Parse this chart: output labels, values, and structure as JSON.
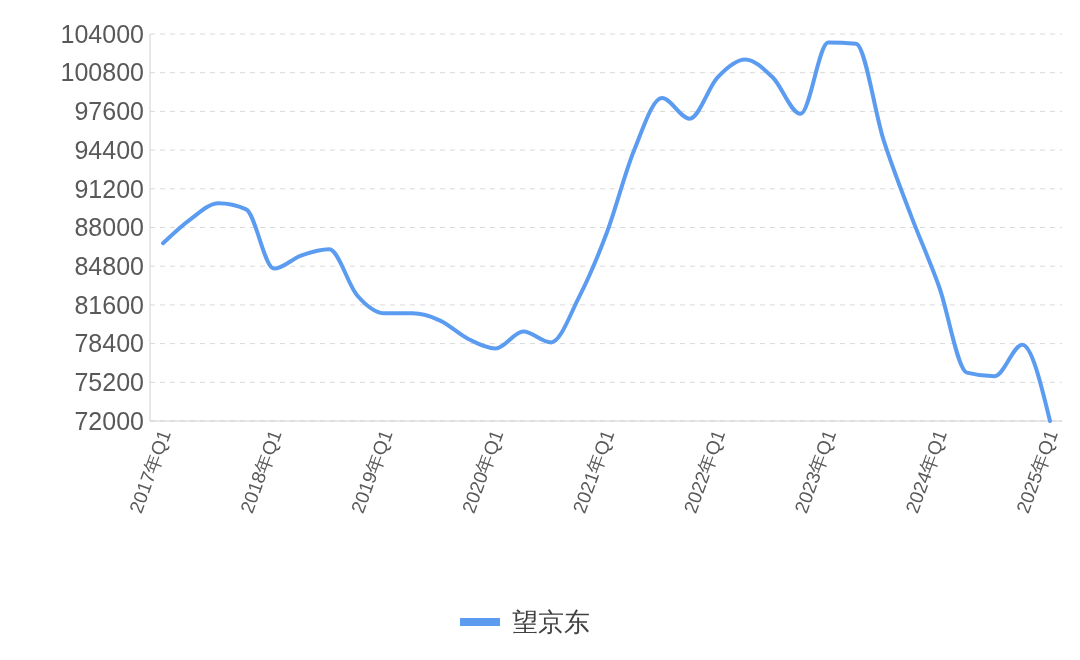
{
  "chart_data": {
    "type": "line",
    "categories": [
      "2017年Q1",
      null,
      null,
      null,
      "2018年Q1",
      null,
      null,
      null,
      "2019年Q1",
      null,
      null,
      null,
      "2020年Q1",
      null,
      null,
      null,
      "2021年Q1",
      null,
      null,
      null,
      "2022年Q1",
      null,
      null,
      null,
      "2023年Q1",
      null,
      null,
      null,
      "2024年Q1",
      null,
      null,
      null,
      "2025年Q1"
    ],
    "series": [
      {
        "name": "望京东",
        "color": "#5b9cf0",
        "values": [
          86700,
          88700,
          90000,
          89500,
          84600,
          85700,
          86200,
          82400,
          80900,
          80900,
          80300,
          78800,
          78000,
          79400,
          78500,
          82200,
          87500,
          94400,
          98700,
          97000,
          100400,
          101900,
          100400,
          97400,
          103300,
          103200,
          95200,
          88900,
          83100,
          76000,
          75700,
          78300,
          72000
        ]
      }
    ],
    "ylim": [
      72000,
      104000
    ],
    "yticks": [
      72000,
      75200,
      78400,
      81600,
      84800,
      88000,
      91200,
      94400,
      97600,
      100800,
      104000
    ],
    "grid": "y",
    "legend": "bottom",
    "marker": "none",
    "line_style": "solid"
  }
}
